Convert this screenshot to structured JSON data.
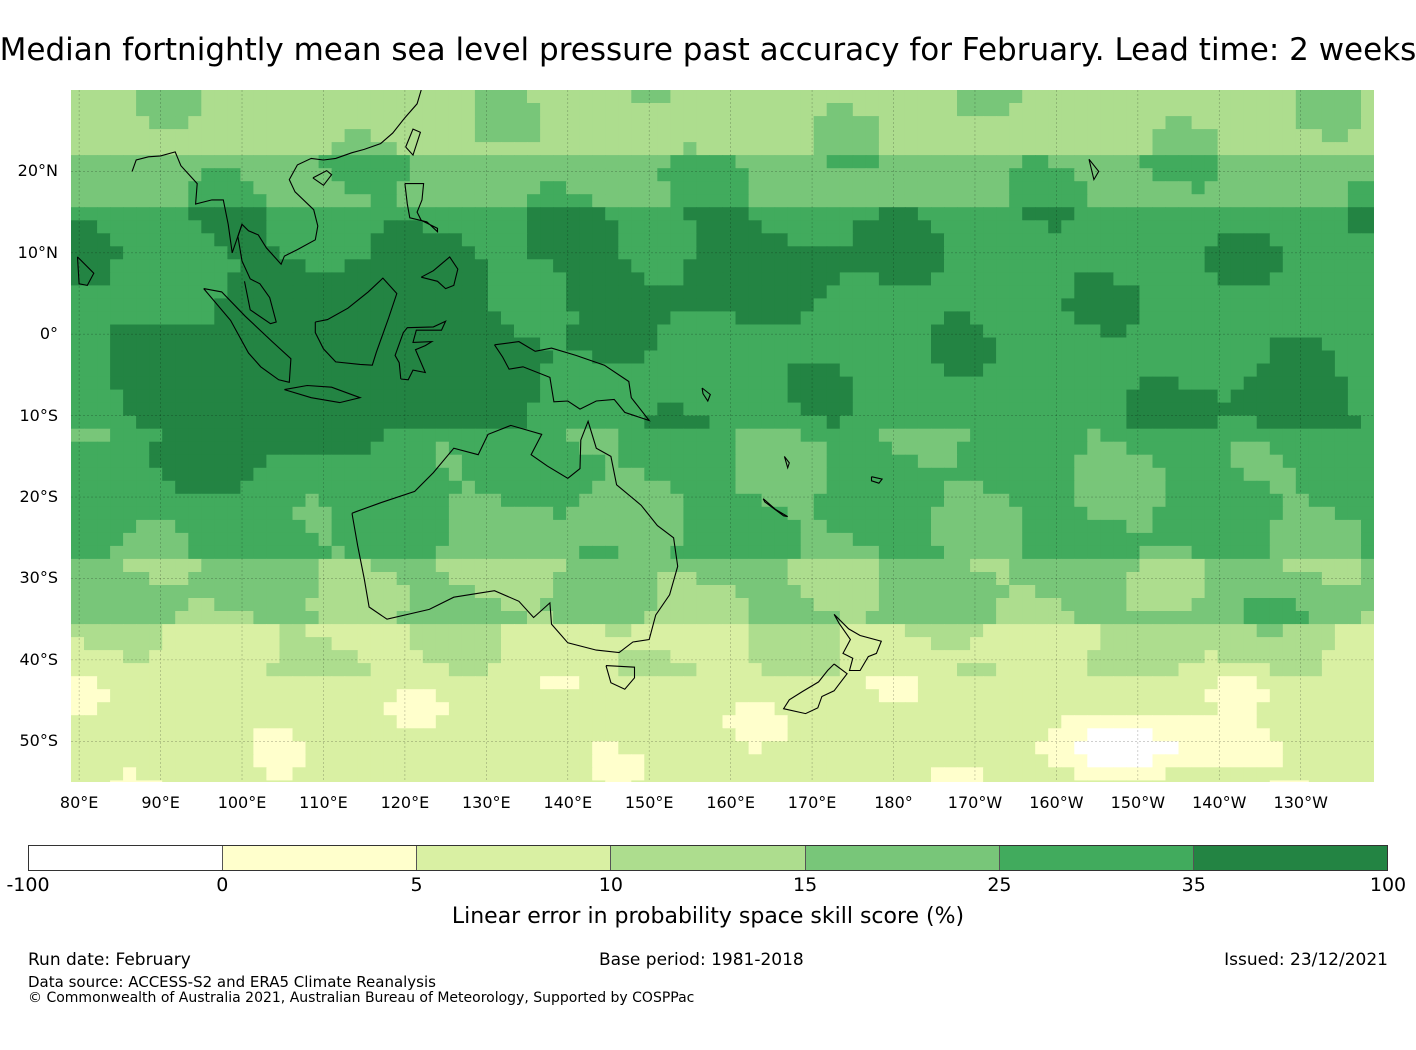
{
  "title": "Median fortnightly mean sea level pressure past accuracy for February. Lead time: 2 weeks",
  "map": {
    "lat_labels": [
      "20°N",
      "10°N",
      "0°",
      "10°S",
      "20°S",
      "30°S",
      "40°S",
      "50°S"
    ],
    "lon_labels": [
      "80°E",
      "90°E",
      "100°E",
      "110°E",
      "120°E",
      "130°E",
      "140°E",
      "150°E",
      "160°E",
      "170°E",
      "180°",
      "170°W",
      "160°W",
      "150°W",
      "140°W",
      "130°W"
    ],
    "lat_values": [
      20,
      10,
      0,
      -10,
      -20,
      -30,
      -40,
      -50
    ],
    "lon_values": [
      80,
      90,
      100,
      110,
      120,
      130,
      140,
      150,
      160,
      170,
      180,
      190,
      200,
      210,
      220,
      230
    ],
    "extent": {
      "lon_min": 79,
      "lon_max": 239,
      "lat_min": -55,
      "lat_max": 30
    },
    "colors": [
      "#ffffff",
      "#ffffcc",
      "#d9f0a3",
      "#addd8e",
      "#78c679",
      "#41ab5d",
      "#238443"
    ],
    "regions": [
      {
        "name": "maritime-continent-high-skill",
        "category": 6
      },
      {
        "name": "central-pacific-skill",
        "category": 5
      },
      {
        "name": "southern-ocean-low-skill",
        "category": 1
      }
    ]
  },
  "colorbar": {
    "ticks": [
      "-100",
      "0",
      "5",
      "10",
      "15",
      "25",
      "35",
      "100"
    ],
    "label": "Linear error in probability space skill score (%)"
  },
  "footer": {
    "run_date": "Run date: February",
    "base_period": "Base period: 1981-2018",
    "issued": "Issued: 23/12/2021",
    "data_source": "Data source: ACCESS-S2 and ERA5 Climate Reanalysis",
    "copyright": "© Commonwealth of Australia 2021, Australian Bureau of Meteorology, Supported by COSPPac"
  }
}
